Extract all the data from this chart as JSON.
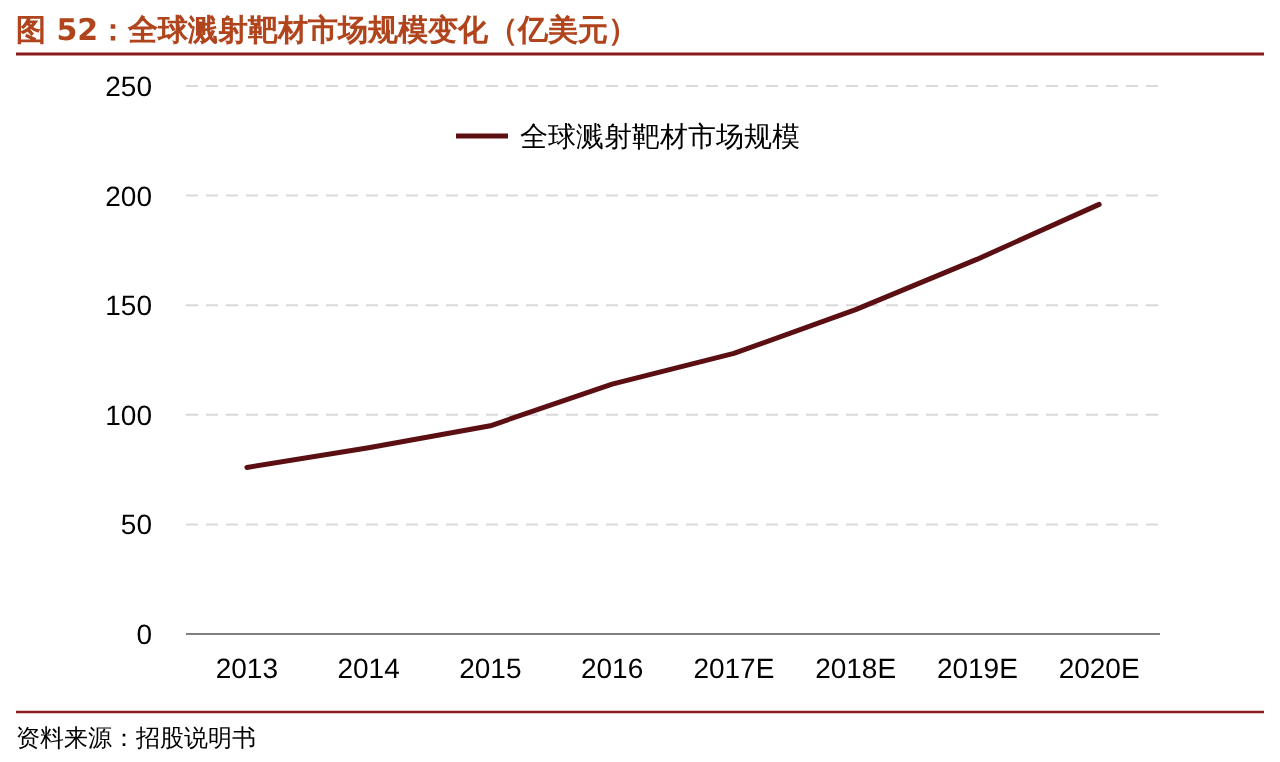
{
  "chart_data": {
    "type": "line",
    "title": "图 52：全球溅射靶材市场规模变化（亿美元）",
    "categories": [
      "2013",
      "2014",
      "2015",
      "2016",
      "2017E",
      "2018E",
      "2019E",
      "2020E"
    ],
    "series": [
      {
        "name": "全球溅射靶材市场规模",
        "color": "#5c0f12",
        "values": [
          76,
          85,
          95,
          114,
          128,
          148,
          171,
          196
        ]
      }
    ],
    "ylim": [
      0,
      250
    ],
    "yticks": [
      0,
      50,
      100,
      150,
      200,
      250
    ],
    "grid": "y",
    "legend": "top",
    "marker": "none",
    "line_style": "solid",
    "annotations": [
      "资料来源：招股说明书"
    ]
  }
}
